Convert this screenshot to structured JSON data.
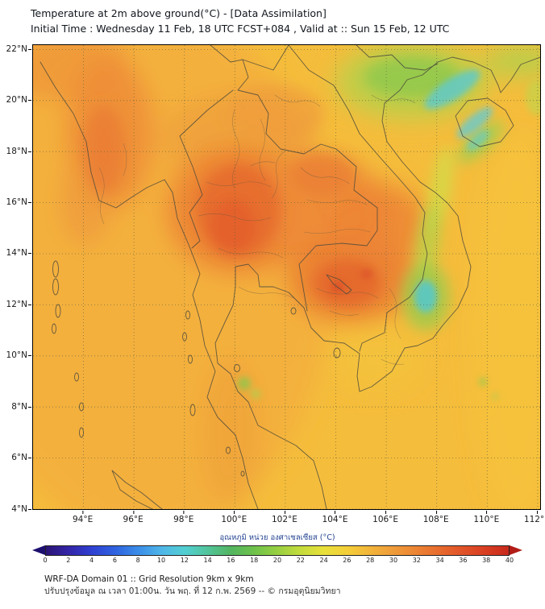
{
  "header": {
    "title": "Temperature at 2m above ground(°C) - [Data Assimilation]",
    "subtitle": "Initial Time : Wednesday 11 Feb, 18 UTC FCST+084 , Valid at :: Sun 15 Feb, 12 UTC"
  },
  "chart_data": {
    "type": "heatmap",
    "title": "Temperature at 2m above ground(°C) - [Data Assimilation]",
    "grid": true,
    "legend_position": "bottom",
    "x_axis": {
      "label_suffix": "°E",
      "range": [
        92.0,
        112.1
      ],
      "ticks": [
        94,
        96,
        98,
        100,
        102,
        104,
        106,
        108,
        110,
        112
      ]
    },
    "y_axis": {
      "label_suffix": "°N",
      "range": [
        4.0,
        22.17
      ],
      "ticks": [
        22,
        20,
        18,
        16,
        14,
        12,
        10,
        8,
        6,
        4
      ]
    },
    "colorbar": {
      "label": "อุณหภูมิ หน่วย องศาเซลเซียส (°C)",
      "range": [
        0,
        40
      ],
      "ticks": [
        0,
        2,
        4,
        6,
        8,
        10,
        12,
        14,
        16,
        18,
        20,
        22,
        24,
        26,
        28,
        30,
        32,
        34,
        36,
        38,
        40
      ],
      "under_color": "#1c0f6e",
      "over_color": "#b21c16",
      "stops": [
        {
          "v": 0,
          "c": "#2b1475"
        },
        {
          "v": 2,
          "c": "#3325a8"
        },
        {
          "v": 4,
          "c": "#2f41d3"
        },
        {
          "v": 6,
          "c": "#2f63e0"
        },
        {
          "v": 8,
          "c": "#3b8ee8"
        },
        {
          "v": 10,
          "c": "#4fb6e8"
        },
        {
          "v": 12,
          "c": "#52cfd2"
        },
        {
          "v": 14,
          "c": "#52c49a"
        },
        {
          "v": 16,
          "c": "#53b55f"
        },
        {
          "v": 18,
          "c": "#6ec24a"
        },
        {
          "v": 20,
          "c": "#97cf41"
        },
        {
          "v": 22,
          "c": "#c4dc3c"
        },
        {
          "v": 24,
          "c": "#e8e03a"
        },
        {
          "v": 26,
          "c": "#f4cf39"
        },
        {
          "v": 28,
          "c": "#f2b53a"
        },
        {
          "v": 30,
          "c": "#ef9c3a"
        },
        {
          "v": 32,
          "c": "#ec8434"
        },
        {
          "v": 34,
          "c": "#e76b2e"
        },
        {
          "v": 36,
          "c": "#e15328"
        },
        {
          "v": 38,
          "c": "#d83e22"
        },
        {
          "v": 40,
          "c": "#c92a1c"
        }
      ]
    },
    "field_estimates_c": [
      {
        "region": "Central Thailand plains",
        "approx": 34
      },
      {
        "region": "Cambodia lowlands",
        "approx": 34
      },
      {
        "region": "Myanmar coastal strip",
        "approx": 32
      },
      {
        "region": "Dominant golden land and sea areas",
        "approx": 28
      },
      {
        "region": "Northern Vietnam (green)",
        "approx": 20
      },
      {
        "region": "Gulf of Tonkin / Hainan streaks (cyan)",
        "approx": 13
      },
      {
        "region": "Southern Vietnam highlands (cyan spot)",
        "approx": 13
      }
    ]
  },
  "footer": {
    "line1": "WRF-DA Domain 01 :: Grid Resolution 9km x 9km",
    "line2": "ปรับปรุงข้อมูล ณ เวลา 01:00น. วัน พฤ. ที่ 12 ก.พ. 2569 -- © กรมอุตุนิยมวิทยา"
  }
}
